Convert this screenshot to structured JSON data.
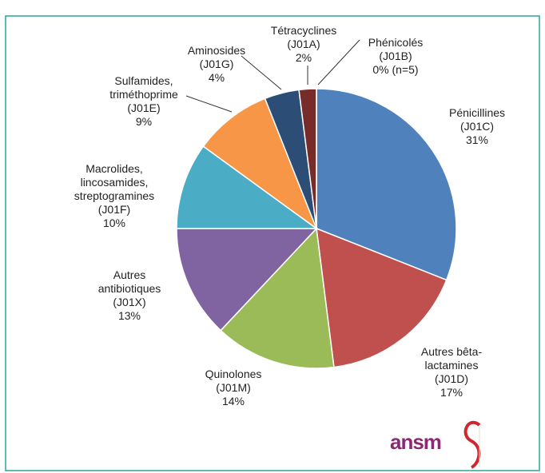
{
  "chart_data": {
    "type": "pie",
    "categories": [
      "Pénicillines\n(J01C)",
      "Autres bêta-\nlactamines\n(J01D)",
      "Quinolones\n(J01M)",
      "Autres\nantibiotiques\n(J01X)",
      "Macrolides,\nlincosamides,\nstreptogramines\n(J01F)",
      "Sulfamides,\ntriméthoprime\n(J01E)",
      "Aminosides\n(J01G)",
      "Tétracyclines\n(J01A)",
      "Phénicolés\n(J01B)"
    ],
    "values": [
      31,
      17,
      14,
      13,
      10,
      9,
      4,
      2,
      0
    ],
    "value_labels": [
      "31%",
      "17%",
      "14%",
      "13%",
      "10%",
      "9%",
      "4%",
      "2%",
      "0% (n=5)"
    ],
    "colors": [
      "#4f81bd",
      "#c0504d",
      "#9bbb59",
      "#8064a2",
      "#4bacc6",
      "#f79646",
      "#2c4d75",
      "#772c2a",
      "#a5a5a5"
    ],
    "logo": "ansm"
  }
}
